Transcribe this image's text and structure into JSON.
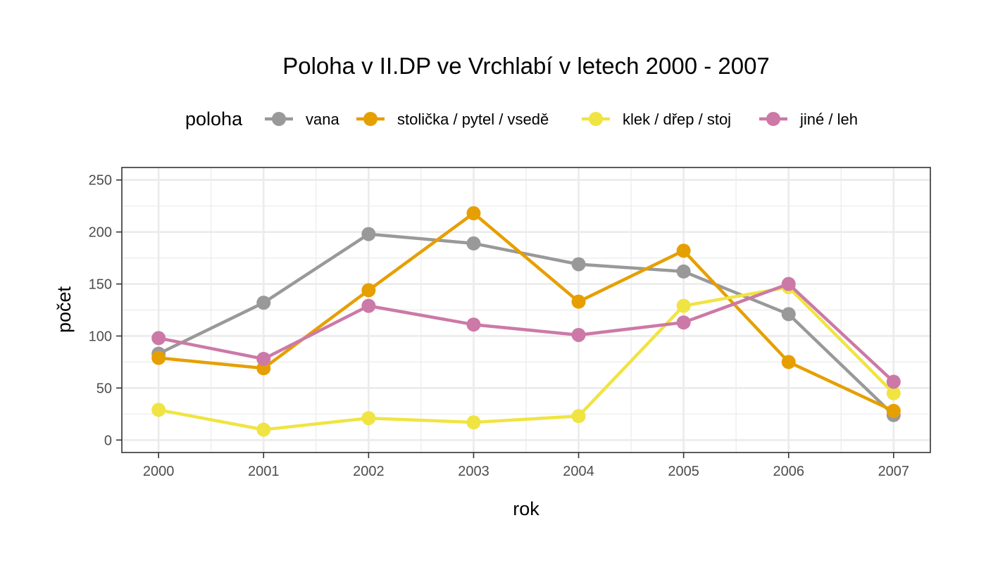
{
  "chart_data": {
    "type": "line",
    "title": "Poloha v II.DP ve Vrchlabí v letech 2000 - 2007",
    "xlabel": "rok",
    "ylabel": "počet",
    "legend_title": "poloha",
    "legend_position": "top",
    "grid": true,
    "x": [
      2000,
      2001,
      2002,
      2003,
      2004,
      2005,
      2006,
      2007
    ],
    "x_tick_labels": [
      "2000",
      "2001",
      "2002",
      "2003",
      "2004",
      "2005",
      "2006",
      "2007"
    ],
    "y_ticks": [
      0,
      50,
      100,
      150,
      200,
      250
    ],
    "y_tick_labels": [
      "0",
      "50",
      "100",
      "150",
      "200",
      "250"
    ],
    "xlim": [
      1999.65,
      2007.35
    ],
    "ylim": [
      -12,
      262
    ],
    "series": [
      {
        "name": "vana",
        "color": "#999999",
        "values": [
          83,
          132,
          198,
          189,
          169,
          162,
          121,
          24
        ]
      },
      {
        "name": "stolička / pytel / vsedě",
        "color": "#E69F00",
        "values": [
          79,
          69,
          144,
          218,
          133,
          182,
          75,
          28
        ]
      },
      {
        "name": "klek / dřep / stoj",
        "color": "#F0E442",
        "values": [
          29,
          10,
          21,
          17,
          23,
          129,
          147,
          45
        ]
      },
      {
        "name": "jiné / leh",
        "color": "#CC79A7",
        "values": [
          98,
          78,
          129,
          111,
          101,
          113,
          150,
          56
        ]
      }
    ]
  }
}
